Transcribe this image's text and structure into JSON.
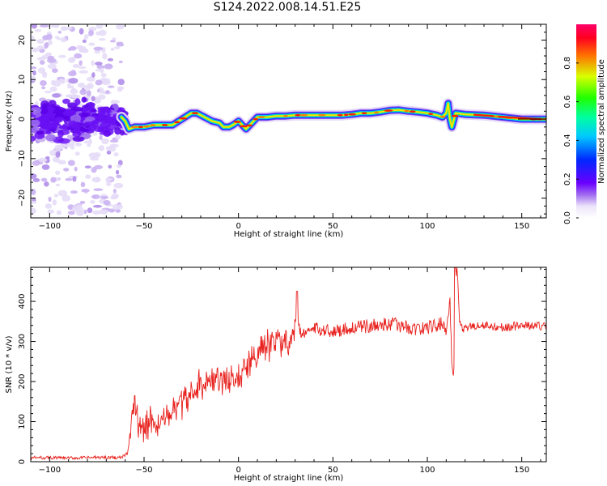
{
  "title": "S124.2022.008.14.51.E25",
  "chart_data": [
    {
      "type": "heatmap",
      "title": "",
      "xlabel": "Height of straight line (km)",
      "ylabel": "Frequency (Hz)",
      "xlim": [
        -110,
        163
      ],
      "ylim": [
        -25,
        24
      ],
      "xticks": [
        -100,
        -50,
        0,
        50,
        100,
        150
      ],
      "yticks": [
        -20,
        -10,
        0,
        10,
        20
      ],
      "colorbar": {
        "label": "Normalized spectral amplitude",
        "range": [
          0,
          1
        ],
        "ticks": [
          "0.0",
          "0.2",
          "0.4",
          "0.6",
          "0.8"
        ],
        "colormap": "gist_rainbow (white to purple, blue, cyan, green, yellow, red, magenta)"
      },
      "ridge": {
        "description": "dominant frequency track (normalized amplitude ~0.5-1.0)",
        "x": [
          -62,
          -60,
          -58,
          -55,
          -50,
          -45,
          -40,
          -35,
          -30,
          -25,
          -22,
          -18,
          -14,
          -10,
          -8,
          -5,
          -3,
          0,
          2,
          4,
          6,
          8,
          10,
          15,
          20,
          25,
          30,
          35,
          40,
          45,
          50,
          55,
          60,
          65,
          70,
          75,
          80,
          85,
          90,
          95,
          100,
          105,
          108,
          110,
          111,
          112,
          113,
          115,
          120,
          130,
          140,
          150,
          163
        ],
        "y": [
          0.5,
          -0.5,
          -2.5,
          -2,
          -2,
          -1.5,
          -1.5,
          -1.5,
          0,
          1.5,
          1.5,
          0.5,
          -0.5,
          -1,
          -2,
          -2,
          -1.5,
          -0.5,
          -1.5,
          -2.5,
          -1.5,
          -0.5,
          0.5,
          0.5,
          0.8,
          0.8,
          1,
          1,
          1,
          1,
          1,
          1,
          1.2,
          1.5,
          1.5,
          1.8,
          2.2,
          2.3,
          2,
          1.8,
          1.5,
          1,
          0.5,
          1.5,
          4,
          0,
          -2,
          1.5,
          1.2,
          1,
          0.5,
          0,
          0
        ]
      },
      "noise_region": {
        "x_range": [
          -110,
          -62
        ],
        "frequency_spread": [
          -24,
          24
        ],
        "core_frequency_range": [
          -6,
          6
        ],
        "core_amplitude": 0.2
      }
    },
    {
      "type": "line",
      "title": "",
      "xlabel": "Height of straight line (km)",
      "ylabel": "SNR (10 * v/v)",
      "xlim": [
        -110,
        163
      ],
      "ylim": [
        0,
        485
      ],
      "xticks": [
        -100,
        -50,
        0,
        50,
        100,
        150
      ],
      "yticks": [
        0,
        100,
        200,
        300,
        400
      ],
      "line_color": "#e8231f",
      "series": [
        {
          "x": [
            -110,
            -100,
            -90,
            -80,
            -70,
            -62,
            -59,
            -57,
            -56,
            -55,
            -53,
            -50,
            -45,
            -40,
            -35,
            -30,
            -25,
            -20,
            -15,
            -10,
            -5,
            0,
            5,
            8,
            10,
            12,
            15,
            20,
            25,
            28,
            30,
            31,
            33,
            35,
            40,
            45,
            50,
            55,
            60,
            65,
            70,
            75,
            80,
            85,
            90,
            95,
            100,
            105,
            108,
            110,
            112,
            113,
            114,
            115,
            116,
            117,
            118,
            120,
            125,
            130,
            140,
            150,
            163
          ],
          "values": [
            10,
            10,
            9,
            10,
            11,
            10,
            20,
            60,
            120,
            140,
            90,
            85,
            100,
            110,
            125,
            140,
            160,
            190,
            200,
            205,
            195,
            215,
            240,
            260,
            270,
            290,
            290,
            300,
            305,
            310,
            330,
            390,
            310,
            325,
            330,
            330,
            325,
            330,
            335,
            335,
            340,
            340,
            345,
            340,
            335,
            330,
            335,
            340,
            345,
            330,
            400,
            240,
            210,
            480,
            470,
            360,
            330,
            335,
            340,
            340,
            335,
            340,
            338
          ]
        }
      ],
      "peaks": [
        {
          "x": -55,
          "y": 165
        },
        {
          "x": 31,
          "y": 425
        },
        {
          "x": 114.5,
          "y": 485
        }
      ]
    }
  ]
}
